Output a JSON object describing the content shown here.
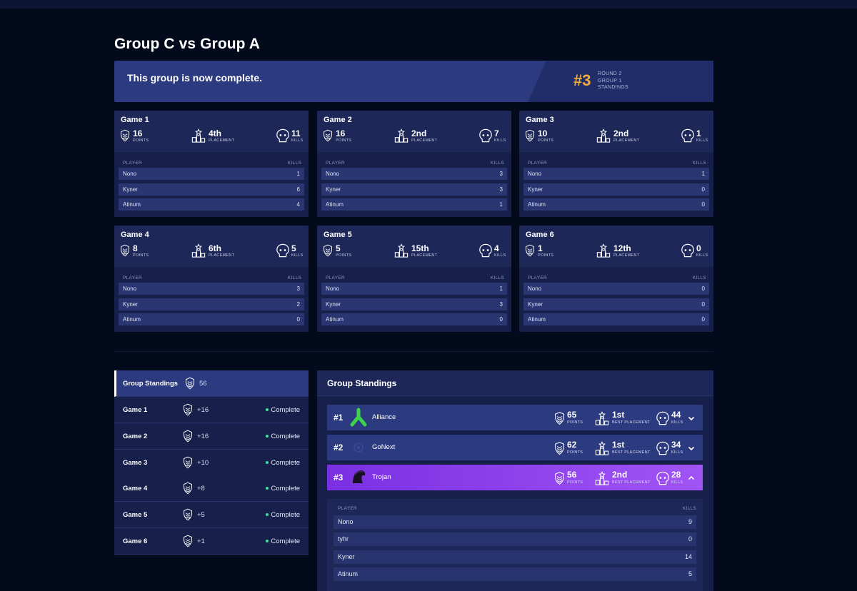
{
  "page_title": "Group C vs Group A",
  "banner": {
    "message": "This group is now complete.",
    "rank": "#3",
    "meta": [
      "ROUND 2",
      "GROUP 1",
      "STANDINGS"
    ],
    "rank_color": "#f0ad3a"
  },
  "labels": {
    "points": "POINTS",
    "placement": "PLACEMENT",
    "kills": "KILLS",
    "best_placement": "BEST PLACEMENT",
    "player": "PLAYER",
    "kills_col": "KILLS"
  },
  "games": [
    {
      "title": "Game 1",
      "points": "16",
      "placement": "4th",
      "kills": "11",
      "players": [
        {
          "name": "Nono",
          "kills": "1"
        },
        {
          "name": "Kyner",
          "kills": "6"
        },
        {
          "name": "Atinum",
          "kills": "4"
        }
      ]
    },
    {
      "title": "Game 2",
      "points": "16",
      "placement": "2nd",
      "kills": "7",
      "players": [
        {
          "name": "Nono",
          "kills": "3"
        },
        {
          "name": "Kyner",
          "kills": "3"
        },
        {
          "name": "Atinum",
          "kills": "1"
        }
      ]
    },
    {
      "title": "Game 3",
      "points": "10",
      "placement": "2nd",
      "kills": "1",
      "players": [
        {
          "name": "Nono",
          "kills": "1"
        },
        {
          "name": "Kyner",
          "kills": "0"
        },
        {
          "name": "Atinum",
          "kills": "0"
        }
      ]
    },
    {
      "title": "Game 4",
      "points": "8",
      "placement": "6th",
      "kills": "5",
      "players": [
        {
          "name": "Nono",
          "kills": "3"
        },
        {
          "name": "Kyner",
          "kills": "2"
        },
        {
          "name": "Atinum",
          "kills": "0"
        }
      ]
    },
    {
      "title": "Game 5",
      "points": "5",
      "placement": "15th",
      "kills": "4",
      "players": [
        {
          "name": "Nono",
          "kills": "1"
        },
        {
          "name": "Kyner",
          "kills": "3"
        },
        {
          "name": "Atinum",
          "kills": "0"
        }
      ]
    },
    {
      "title": "Game 6",
      "points": "1",
      "placement": "12th",
      "kills": "0",
      "players": [
        {
          "name": "Nono",
          "kills": "0"
        },
        {
          "name": "Kyner",
          "kills": "0"
        },
        {
          "name": "Atinum",
          "kills": "0"
        }
      ]
    }
  ],
  "left_list": {
    "header": {
      "label": "Group Standings",
      "value": "56"
    },
    "items": [
      {
        "label": "Game 1",
        "value": "+16",
        "status": "Complete"
      },
      {
        "label": "Game 2",
        "value": "+16",
        "status": "Complete"
      },
      {
        "label": "Game 3",
        "value": "+10",
        "status": "Complete"
      },
      {
        "label": "Game 4",
        "value": "+8",
        "status": "Complete"
      },
      {
        "label": "Game 5",
        "value": "+5",
        "status": "Complete"
      },
      {
        "label": "Game 6",
        "value": "+1",
        "status": "Complete"
      }
    ],
    "status_color": "#3ee0a0"
  },
  "standings": {
    "title": "Group Standings",
    "teams": [
      {
        "rank": "#1",
        "name": "Alliance",
        "logo": "alliance-logo",
        "points": "65",
        "best": "1st",
        "kills": "44"
      },
      {
        "rank": "#2",
        "name": "GoNext",
        "logo": "gonext-logo",
        "points": "62",
        "best": "1st",
        "kills": "34"
      },
      {
        "rank": "#3",
        "name": "Trojan",
        "logo": "trojan-logo",
        "points": "56",
        "best": "2nd",
        "kills": "28"
      }
    ],
    "expanded_players": [
      {
        "name": "Nono",
        "kills": "9"
      },
      {
        "name": "tyhr",
        "kills": "0"
      },
      {
        "name": "Kyner",
        "kills": "14"
      },
      {
        "name": "Atinum",
        "kills": "5"
      }
    ],
    "highlight_color": "#8a3ff0"
  }
}
